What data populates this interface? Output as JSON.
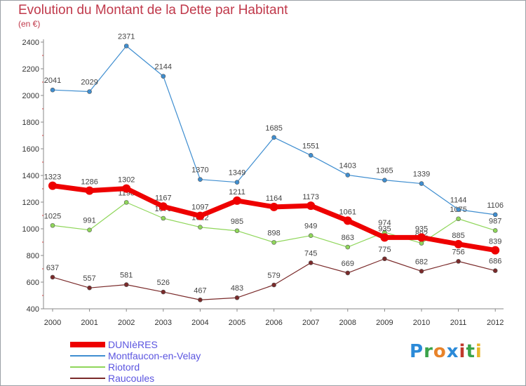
{
  "title": "Evolution du Montant de la Dette par Habitant",
  "subtitle": "(en €)",
  "logo": {
    "text": "Proxiti",
    "colors": [
      "#2b8ad8",
      "#3aa34a",
      "#e8832a",
      "#2b8ad8",
      "#c0392b",
      "#3aa34a",
      "#e8b62a"
    ]
  },
  "chart_data": {
    "type": "line",
    "title": "Evolution du Montant de la Dette par Habitant",
    "subtitle": "(en €)",
    "x": [
      "2000",
      "2001",
      "2002",
      "2003",
      "2004",
      "2005",
      "2006",
      "2007",
      "2008",
      "2009",
      "2010",
      "2011",
      "2012"
    ],
    "ylim": [
      400,
      2400
    ],
    "yticks": [
      400,
      600,
      800,
      1000,
      1200,
      1400,
      1600,
      1800,
      2000,
      2200,
      2400
    ],
    "grid": false,
    "legend": "bottom-left",
    "series": [
      {
        "name": "Raucoules",
        "color": "#7a2a2a",
        "values": [
          637,
          557,
          581,
          526,
          467,
          483,
          579,
          745,
          669,
          775,
          682,
          756,
          686
        ]
      },
      {
        "name": "Riotord",
        "color": "#8fd65a",
        "values": [
          1025,
          991,
          1198,
          1079,
          1012,
          985,
          898,
          949,
          863,
          974,
          892,
          1075,
          987
        ]
      },
      {
        "name": "Montfaucon-en-Velay",
        "color": "#3f8ed0",
        "values": [
          2041,
          2029,
          2371,
          2144,
          1370,
          1349,
          1685,
          1551,
          1403,
          1365,
          1339,
          1144,
          1106
        ]
      },
      {
        "name": "DUNIèRES",
        "color": "#ee0000",
        "values": [
          1323,
          1286,
          1302,
          1167,
          1097,
          1211,
          1164,
          1173,
          1061,
          935,
          935,
          885,
          839
        ]
      }
    ],
    "legend_order": [
      "DUNIèRES",
      "Montfaucon-en-Velay",
      "Riotord",
      "Raucoules"
    ]
  }
}
